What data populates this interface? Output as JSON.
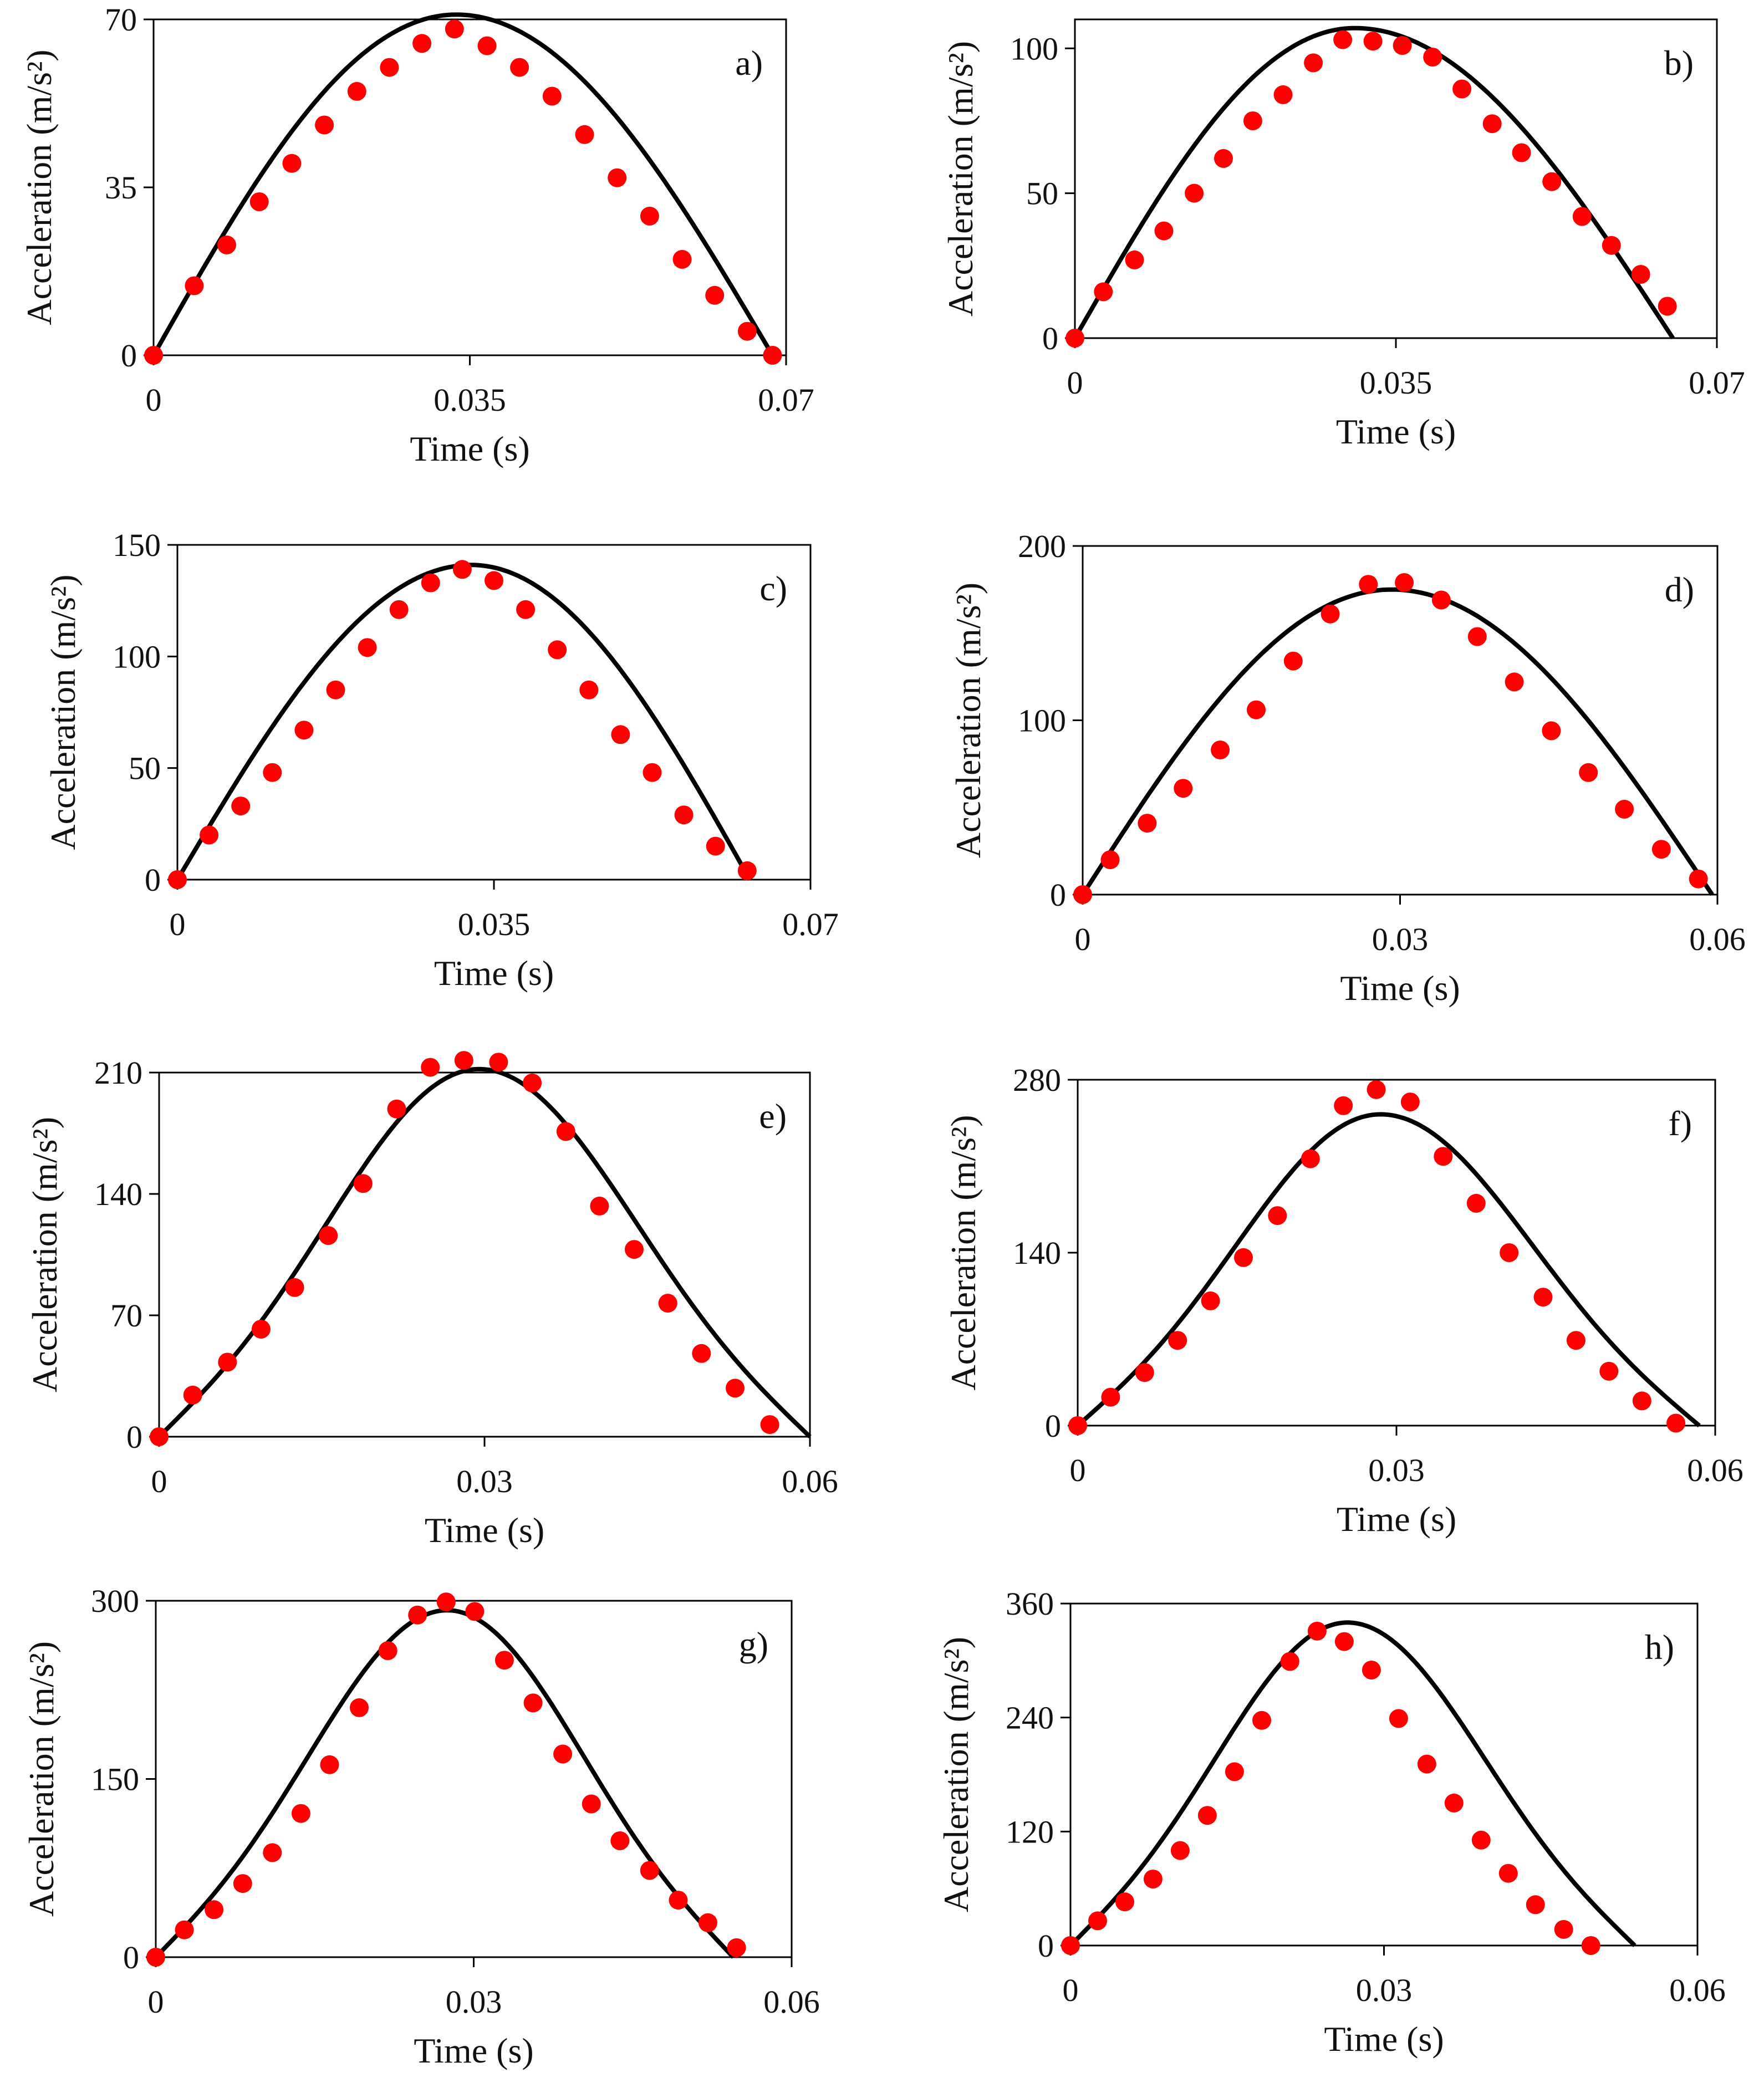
{
  "figure": {
    "marker_color": "#ff0000",
    "line_color": "#000000",
    "x_axis_title": "Time (s)",
    "y_axis_title": "Acceleration (m/s²)"
  },
  "chart_data": [
    {
      "type": "line",
      "panel": "a)",
      "xlabel": "Time (s)",
      "ylabel": "Acceleration (m/s²)",
      "xlim": [
        0,
        0.07
      ],
      "ylim": [
        0,
        70
      ],
      "xticks": [
        0,
        0.035,
        0.07
      ],
      "xtick_labels": [
        "0",
        "0.035",
        "0.07"
      ],
      "yticks": [
        0,
        35,
        70
      ],
      "ytick_labels": [
        "0",
        "35",
        "70"
      ],
      "series": [
        {
          "name": "model",
          "style": "line",
          "shape": "sine",
          "t_peak": 0.0335,
          "t_end": 0.0685,
          "peak": 71
        },
        {
          "name": "data",
          "style": "markers",
          "x": [
            0,
            0.0045,
            0.0081,
            0.0117,
            0.0153,
            0.0189,
            0.0225,
            0.0261,
            0.0297,
            0.0333,
            0.0369,
            0.0405,
            0.0441,
            0.0477,
            0.0513,
            0.0549,
            0.0585,
            0.0621,
            0.0657,
            0.0685
          ],
          "y": [
            0,
            14.5,
            23,
            32,
            40,
            48,
            55,
            60,
            65,
            68,
            64.5,
            60,
            54,
            46,
            37,
            29,
            20,
            12.5,
            5,
            0
          ]
        }
      ]
    },
    {
      "type": "line",
      "panel": "b)",
      "xlabel": "Time (s)",
      "ylabel": "Acceleration (m/s²)",
      "xlim": [
        0,
        0.07
      ],
      "ylim": [
        0,
        110
      ],
      "xticks": [
        0,
        0.035,
        0.07
      ],
      "xtick_labels": [
        "0",
        "0.035",
        "0.07"
      ],
      "yticks": [
        0,
        50,
        100
      ],
      "ytick_labels": [
        "0",
        "50",
        "100"
      ],
      "series": [
        {
          "name": "model",
          "style": "line",
          "shape": "sine",
          "t_peak": 0.0305,
          "t_end": 0.0652,
          "peak": 107
        },
        {
          "name": "data",
          "style": "markers",
          "x": [
            0,
            0.0031,
            0.0065,
            0.0097,
            0.013,
            0.0162,
            0.0194,
            0.0227,
            0.026,
            0.0292,
            0.0325,
            0.0357,
            0.039,
            0.0422,
            0.0455,
            0.0487,
            0.052,
            0.0553,
            0.0585,
            0.0617,
            0.0646
          ],
          "y": [
            0,
            16,
            27,
            37,
            50,
            62,
            75,
            84,
            95,
            103,
            102.5,
            101,
            97,
            86,
            74,
            64,
            54,
            42,
            32,
            22,
            11
          ]
        }
      ]
    },
    {
      "type": "line",
      "panel": "c)",
      "xlabel": "Time (s)",
      "ylabel": "Acceleration (m/s²)",
      "xlim": [
        0,
        0.07
      ],
      "ylim": [
        0,
        150
      ],
      "xticks": [
        0,
        0.035,
        0.07
      ],
      "xtick_labels": [
        "0",
        "0.035",
        "0.07"
      ],
      "yticks": [
        0,
        50,
        100,
        150
      ],
      "ytick_labels": [
        "0",
        "50",
        "100",
        "150"
      ],
      "series": [
        {
          "name": "model",
          "style": "line",
          "shape": "sine",
          "t_peak": 0.0325,
          "t_end": 0.0633,
          "peak": 141
        },
        {
          "name": "data",
          "style": "markers",
          "x": [
            0,
            0.0035,
            0.007,
            0.0105,
            0.014,
            0.0175,
            0.021,
            0.0245,
            0.028,
            0.0315,
            0.035,
            0.0385,
            0.042,
            0.0455,
            0.049,
            0.0525,
            0.056,
            0.0595,
            0.063
          ],
          "y": [
            0,
            20,
            33,
            48,
            67,
            85,
            104,
            121,
            133,
            139,
            134,
            121,
            103,
            85,
            65,
            48,
            29,
            15,
            4
          ]
        }
      ]
    },
    {
      "type": "line",
      "panel": "d)",
      "xlabel": "Time (s)",
      "ylabel": "Acceleration (m/s²)",
      "xlim": [
        0,
        0.06
      ],
      "ylim": [
        0,
        200
      ],
      "xticks": [
        0,
        0.03,
        0.06
      ],
      "xtick_labels": [
        "0",
        "0.03",
        "0.06"
      ],
      "yticks": [
        0,
        100,
        200
      ],
      "ytick_labels": [
        "0",
        "100",
        "200"
      ],
      "series": [
        {
          "name": "model",
          "style": "line",
          "shape": "sine",
          "t_peak": 0.0292,
          "t_end": 0.0595,
          "peak": 175
        },
        {
          "name": "data",
          "style": "markers",
          "x": [
            0,
            0.0026,
            0.0061,
            0.0095,
            0.013,
            0.0164,
            0.0199,
            0.0234,
            0.027,
            0.0304,
            0.0339,
            0.0373,
            0.0408,
            0.0443,
            0.0478,
            0.0512,
            0.0547,
            0.0582
          ],
          "y": [
            0,
            20,
            41,
            61,
            83,
            106,
            134,
            161,
            178,
            179,
            169,
            148,
            122,
            94,
            70,
            49,
            26,
            9
          ]
        }
      ]
    },
    {
      "type": "line",
      "panel": "e)",
      "xlabel": "Time (s)",
      "ylabel": "Acceleration (m/s²)",
      "xlim": [
        0,
        0.06
      ],
      "ylim": [
        0,
        210
      ],
      "xticks": [
        0,
        0.03,
        0.06
      ],
      "xtick_labels": [
        "0",
        "0.03",
        "0.06"
      ],
      "yticks": [
        0,
        70,
        140,
        210
      ],
      "ytick_labels": [
        "0",
        "70",
        "140",
        "210"
      ],
      "series": [
        {
          "name": "model",
          "style": "line",
          "shape": "bell",
          "t_peak": 0.0295,
          "t_end": 0.06,
          "peak": 212
        },
        {
          "name": "data",
          "style": "markers",
          "x": [
            0,
            0.0031,
            0.0063,
            0.0094,
            0.0125,
            0.0156,
            0.0188,
            0.0219,
            0.025,
            0.0281,
            0.0313,
            0.0344,
            0.0375,
            0.0406,
            0.0438,
            0.0469,
            0.05,
            0.0531,
            0.0563
          ],
          "y": [
            0,
            24,
            43,
            62,
            86,
            116,
            146,
            189,
            213,
            217,
            216,
            204,
            176,
            133,
            108,
            77,
            48,
            28,
            7
          ]
        }
      ]
    },
    {
      "type": "line",
      "panel": "f)",
      "xlabel": "Time (s)",
      "ylabel": "Acceleration (m/s²)",
      "xlim": [
        0,
        0.06
      ],
      "ylim": [
        0,
        280
      ],
      "xticks": [
        0,
        0.03,
        0.06
      ],
      "xtick_labels": [
        "0",
        "0.03",
        "0.06"
      ],
      "yticks": [
        0,
        140,
        280
      ],
      "ytick_labels": [
        "0",
        "140",
        "280"
      ],
      "series": [
        {
          "name": "model",
          "style": "line",
          "shape": "bell",
          "t_peak": 0.0285,
          "t_end": 0.0585,
          "peak": 252
        },
        {
          "name": "data",
          "style": "markers",
          "x": [
            0,
            0.0031,
            0.0063,
            0.0094,
            0.0125,
            0.0156,
            0.0188,
            0.0219,
            0.025,
            0.0281,
            0.0313,
            0.0344,
            0.0375,
            0.0406,
            0.0438,
            0.0469,
            0.05,
            0.0531,
            0.0563
          ],
          "y": [
            0,
            23,
            43,
            69,
            101,
            136,
            170,
            216,
            259,
            272,
            262,
            218,
            180,
            140,
            104,
            69,
            44,
            20,
            2
          ]
        }
      ]
    },
    {
      "type": "line",
      "panel": "g)",
      "xlabel": "Time (s)",
      "ylabel": "Acceleration (m/s²)",
      "xlim": [
        0,
        0.06
      ],
      "ylim": [
        0,
        300
      ],
      "xticks": [
        0,
        0.03,
        0.06
      ],
      "xtick_labels": [
        "0",
        "0.03",
        "0.06"
      ],
      "yticks": [
        0,
        150,
        300
      ],
      "ytick_labels": [
        "0",
        "150",
        "300"
      ],
      "series": [
        {
          "name": "model",
          "style": "line",
          "shape": "bell",
          "t_peak": 0.0275,
          "t_end": 0.0545,
          "peak": 292
        },
        {
          "name": "data",
          "style": "markers",
          "x": [
            0,
            0.0027,
            0.0055,
            0.0082,
            0.011,
            0.0137,
            0.0164,
            0.0192,
            0.0219,
            0.0247,
            0.0274,
            0.0301,
            0.0329,
            0.0356,
            0.0384,
            0.0411,
            0.0438,
            0.0466,
            0.0493,
            0.0521,
            0.0548
          ],
          "y": [
            0,
            23,
            40,
            62,
            88,
            121,
            162,
            210,
            258,
            288,
            299,
            291,
            250,
            214,
            171,
            129,
            98,
            73,
            48,
            29,
            8
          ]
        }
      ]
    },
    {
      "type": "line",
      "panel": "h)",
      "xlabel": "Time (s)",
      "ylabel": "Acceleration (m/s²)",
      "xlim": [
        0,
        0.06
      ],
      "ylim": [
        0,
        360
      ],
      "xticks": [
        0,
        0.03,
        0.06
      ],
      "xtick_labels": [
        "0",
        "0.03",
        "0.06"
      ],
      "yticks": [
        0,
        120,
        240,
        360
      ],
      "ytick_labels": [
        "0",
        "120",
        "240",
        "360"
      ],
      "series": [
        {
          "name": "model",
          "style": "line",
          "shape": "bell",
          "t_peak": 0.0265,
          "t_end": 0.054,
          "peak": 340
        },
        {
          "name": "data",
          "style": "markers",
          "x": [
            0,
            0.0026,
            0.0052,
            0.0079,
            0.0105,
            0.0131,
            0.0157,
            0.0183,
            0.021,
            0.0236,
            0.0262,
            0.0288,
            0.0314,
            0.0341,
            0.0367,
            0.0393,
            0.0419,
            0.0445,
            0.0472,
            0.0498
          ],
          "y": [
            0,
            26,
            46,
            70,
            100,
            137,
            183,
            237,
            299,
            331,
            320,
            290,
            239,
            191,
            150,
            111,
            76,
            43,
            17,
            0
          ]
        }
      ]
    }
  ]
}
